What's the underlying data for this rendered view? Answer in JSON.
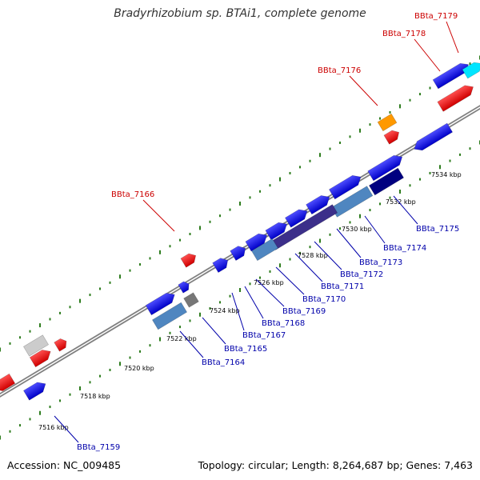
{
  "title": "Bradyrhizobium sp. BTAi1, complete genome",
  "footer": {
    "accession": "Accession: NC_009485",
    "stats": "Topology: circular; Length: 8,264,687 bp; Genes: 7,463"
  },
  "colors": {
    "backbone": "#808080",
    "ticks": "#2e7d1e",
    "label_red": "#cc0000",
    "label_blue": "#0000aa",
    "gene_blue": "#1a1ae6",
    "gene_red": "#ff1a1a",
    "gene_orange": "#ff9900",
    "gene_cyan": "#00e5ff",
    "gene_navy": "#000080",
    "gene_steel": "#4f86c0",
    "gene_violet": "#3c2f8a",
    "gene_gray": "#777777",
    "gene_lightgray": "#cccccc"
  },
  "scale": [
    "7516 kbp",
    "7518 kbp",
    "7520 kbp",
    "7522 kbp",
    "7524 kbp",
    "7526 kbp",
    "7528 kbp",
    "7530 kbp",
    "7532 kbp",
    "7534 kbp"
  ],
  "top_labels": [
    "BBta_7179",
    "BBta_7178",
    "BBta_7176",
    "BBta_7166"
  ],
  "bottom_labels": [
    "BBta_7175",
    "BBta_7174",
    "BBta_7173",
    "BBta_7172",
    "BBta_7171",
    "BBta_7170",
    "BBta_7169",
    "BBta_7168",
    "BBta_7167",
    "BBta_7165",
    "BBta_7164",
    "BBta_7159"
  ]
}
